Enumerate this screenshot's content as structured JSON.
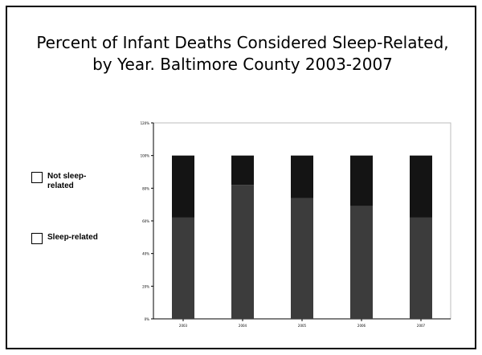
{
  "title_line1": "Percent of Infant Deaths Considered Sleep-Related,",
  "title_line2": "by Year. Baltimore County 2003-2007",
  "legend": [
    {
      "label": "Not sleep-related",
      "color": "#141414"
    },
    {
      "label": "Sleep-related",
      "color": "#3c3c3c"
    }
  ],
  "chart_data": {
    "type": "bar",
    "stacked": true,
    "categories": [
      "2003",
      "2004",
      "2005",
      "2006",
      "2007"
    ],
    "series": [
      {
        "name": "Sleep-related",
        "values": [
          62,
          82,
          74,
          69,
          62
        ],
        "color": "#3c3c3c"
      },
      {
        "name": "Not sleep-related",
        "values": [
          38,
          18,
          26,
          31,
          38
        ],
        "color": "#141414"
      }
    ],
    "yticks": [
      "0%",
      "20%",
      "40%",
      "60%",
      "80%",
      "100%",
      "120%"
    ],
    "ylim": [
      0,
      120
    ],
    "grid": false,
    "legend_position": "left"
  }
}
